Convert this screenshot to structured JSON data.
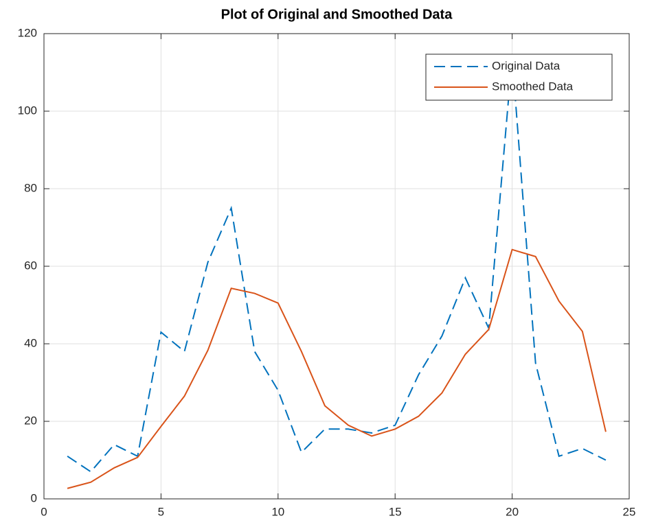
{
  "chart_data": {
    "type": "line",
    "title": "Plot of Original and Smoothed Data",
    "x": [
      1,
      2,
      3,
      4,
      5,
      6,
      7,
      8,
      9,
      10,
      11,
      12,
      13,
      14,
      15,
      16,
      17,
      18,
      19,
      20,
      21,
      22,
      23,
      24
    ],
    "series": [
      {
        "name": "Original Data",
        "color": "#0072bd",
        "dashed": true,
        "values": [
          11,
          7,
          14,
          11,
          43,
          38,
          61,
          75,
          38,
          28,
          12,
          18,
          18,
          17,
          19,
          32,
          42,
          57,
          44,
          114,
          35,
          11,
          13,
          10
        ]
      },
      {
        "name": "Smoothed Data",
        "color": "#d95319",
        "dashed": false,
        "values": [
          2.7,
          4.3,
          8,
          10.7,
          18.7,
          26.5,
          38.3,
          54.3,
          53,
          50.5,
          38,
          24,
          19,
          16.2,
          18,
          21.3,
          27.3,
          37.3,
          43.7,
          64.3,
          62.5,
          51,
          43.2,
          17.3
        ]
      }
    ],
    "xlim": [
      0,
      25
    ],
    "xticks": [
      0,
      5,
      10,
      15,
      20,
      25
    ],
    "ylim": [
      0,
      120
    ],
    "yticks": [
      0,
      20,
      40,
      60,
      80,
      100,
      120
    ],
    "grid": true,
    "legend": "northeast"
  }
}
